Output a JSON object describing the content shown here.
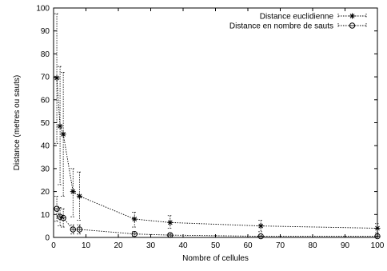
{
  "chart_data": {
    "type": "line",
    "xlabel": "Nombre of cellules",
    "ylabel": "Distance (metres ou sauts)",
    "xlim": [
      0,
      100
    ],
    "ylim": [
      0,
      100
    ],
    "xticks": [
      0,
      10,
      20,
      30,
      40,
      50,
      60,
      70,
      80,
      90,
      100
    ],
    "yticks": [
      0,
      10,
      20,
      30,
      40,
      50,
      60,
      70,
      80,
      90,
      100
    ],
    "grid": false,
    "legend_position": "top-right",
    "series": [
      {
        "name": "Distance euclidienne",
        "marker": "asterisk",
        "line": "dotted",
        "points": [
          {
            "x": 1,
            "y": 69.5,
            "low": 41,
            "high": 97.5
          },
          {
            "x": 2,
            "y": 48.5,
            "low": 23,
            "high": 74.5
          },
          {
            "x": 3,
            "y": 45,
            "low": 18,
            "high": 72
          },
          {
            "x": 6,
            "y": 20,
            "low": 9,
            "high": 30
          },
          {
            "x": 8,
            "y": 18,
            "low": 7.5,
            "high": 28.5
          },
          {
            "x": 25,
            "y": 8,
            "low": 4.5,
            "high": 11
          },
          {
            "x": 36,
            "y": 6.5,
            "low": 4,
            "high": 9.5
          },
          {
            "x": 64,
            "y": 5,
            "low": 2.5,
            "high": 7.5
          },
          {
            "x": 100,
            "y": 4,
            "low": 2,
            "high": 6
          }
        ]
      },
      {
        "name": "Distance en nombre de sauts",
        "marker": "circle",
        "line": "dotted",
        "points": [
          {
            "x": 1,
            "y": 12.5,
            "low": 7,
            "high": 18
          },
          {
            "x": 2,
            "y": 9,
            "low": 5,
            "high": 13
          },
          {
            "x": 3,
            "y": 8.5,
            "low": 4.5,
            "high": 12.5
          },
          {
            "x": 6,
            "y": 3.5,
            "low": 1.5,
            "high": 5.5
          },
          {
            "x": 8,
            "y": 3.5,
            "low": 1.5,
            "high": 5.5
          },
          {
            "x": 25,
            "y": 1.5,
            "low": 0.5,
            "high": 2.5
          },
          {
            "x": 36,
            "y": 1,
            "low": 0.5,
            "high": 1.5
          },
          {
            "x": 64,
            "y": 0.5,
            "low": 0,
            "high": 1
          },
          {
            "x": 100,
            "y": 0.5,
            "low": 0,
            "high": 1
          }
        ]
      }
    ]
  }
}
